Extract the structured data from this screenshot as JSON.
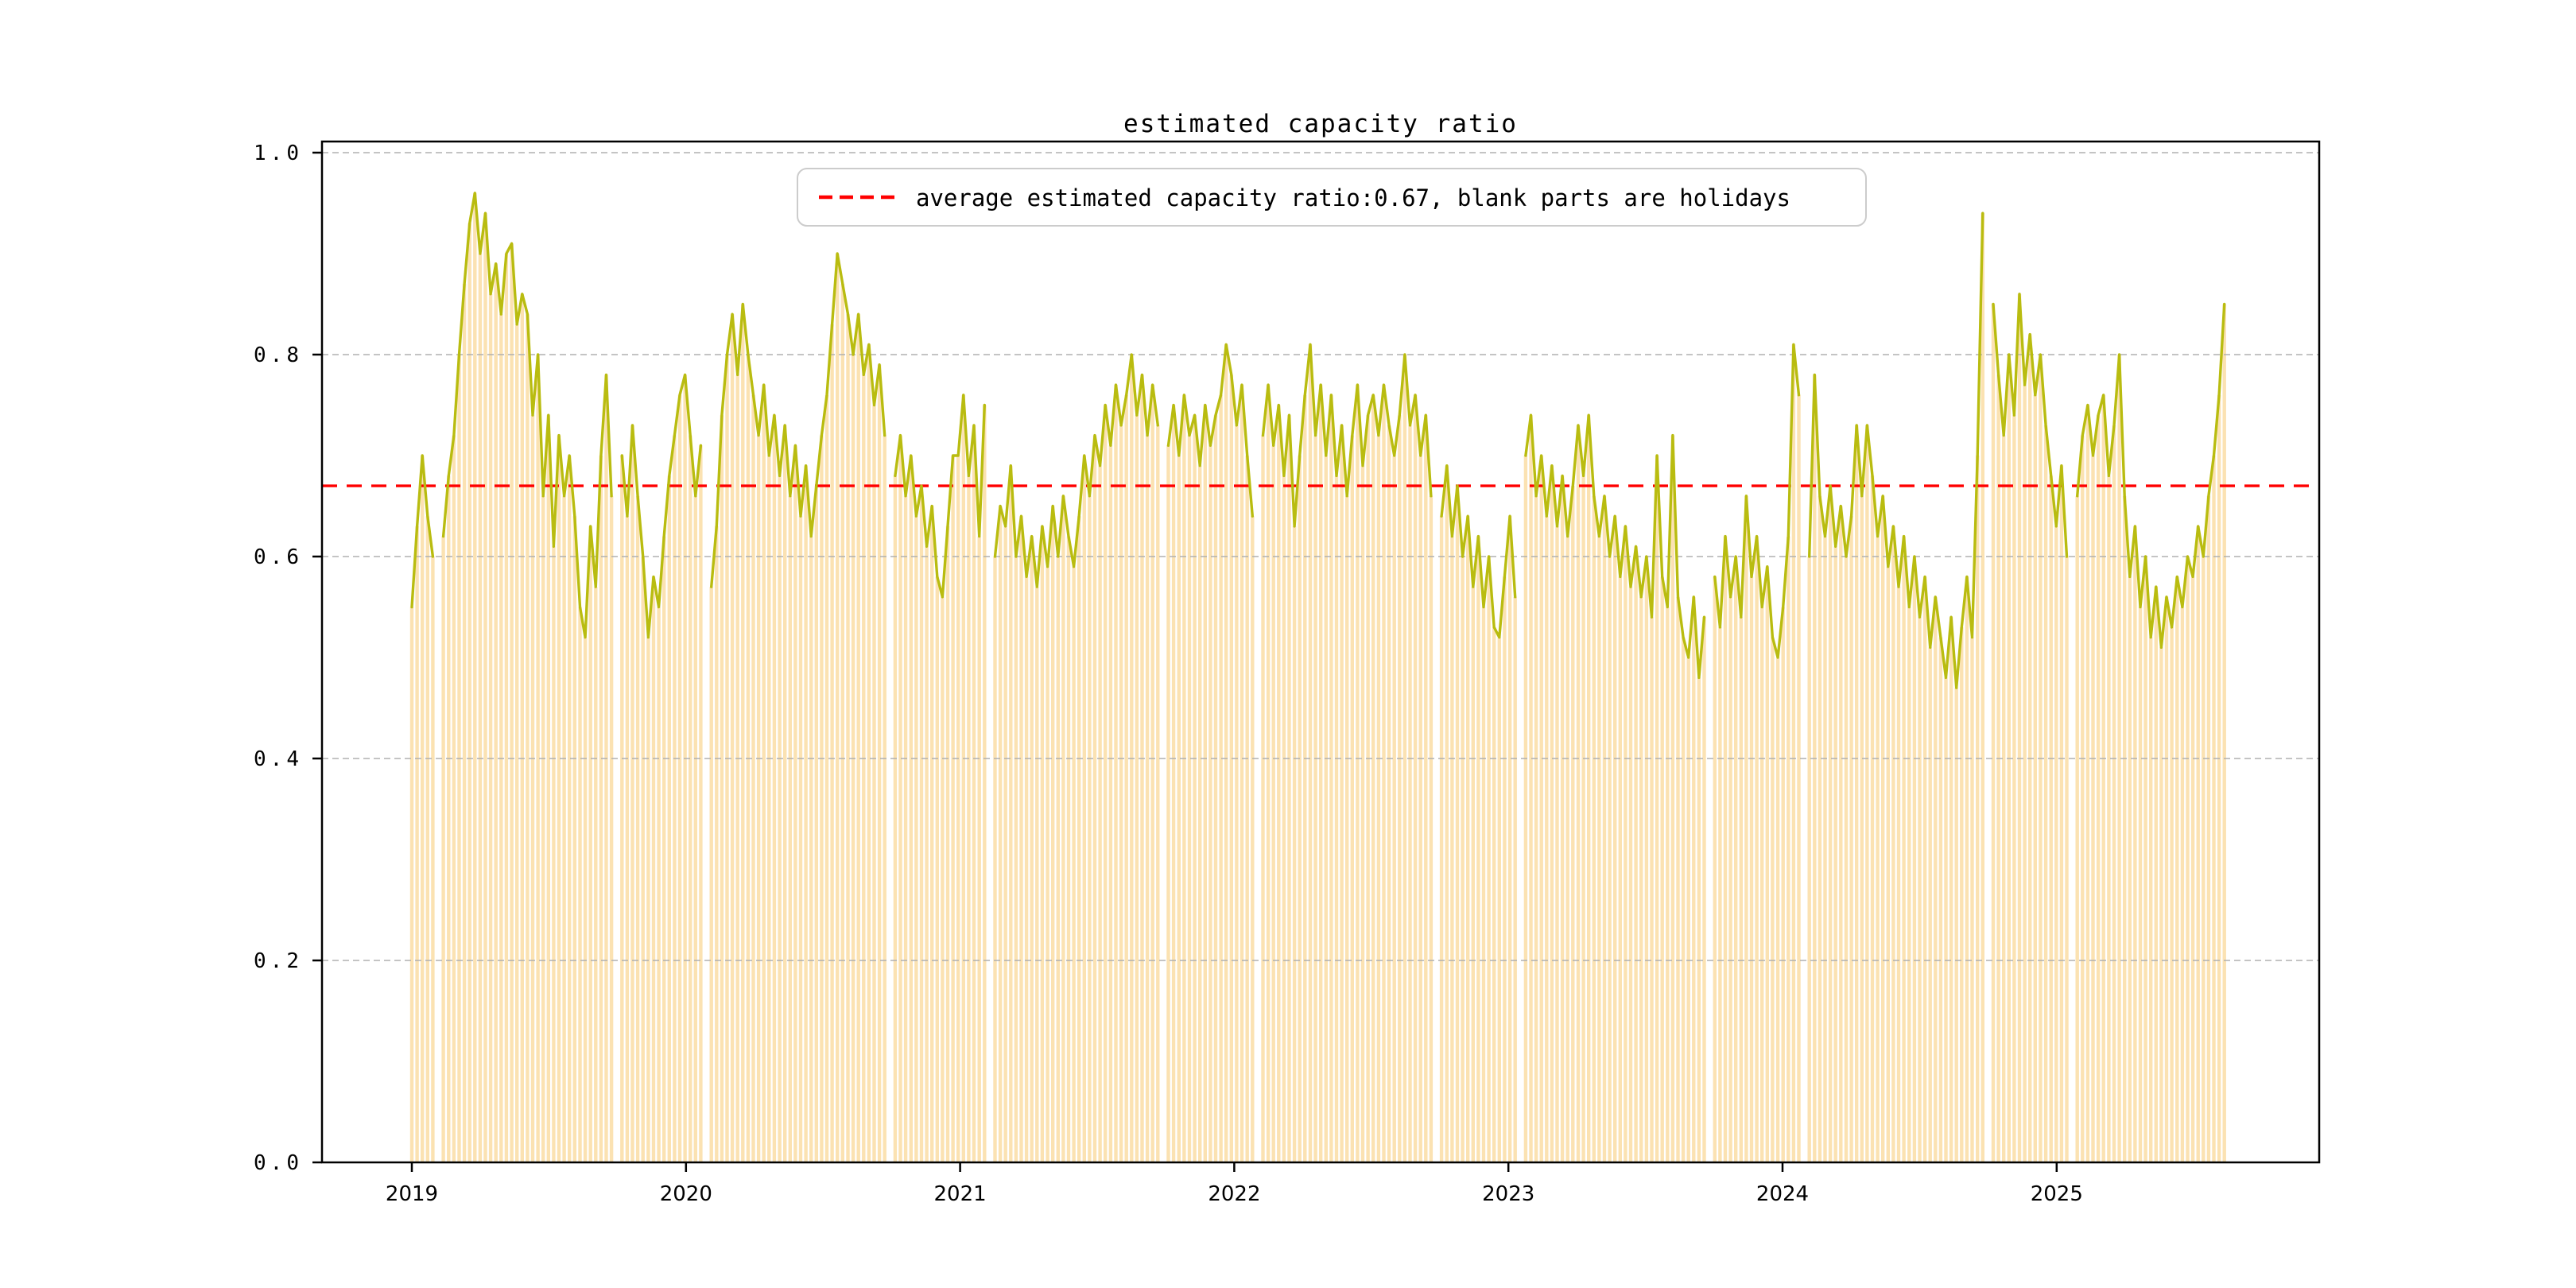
{
  "chart": {
    "title": "estimated capacity ratio",
    "legend": {
      "label": "average estimated capacity ratio:0.67, blank parts are holidays",
      "swatch": "red-dashed-line"
    },
    "colors": {
      "line": "#b9bc10",
      "bars": "#fbe2b2",
      "average": "#ff0000",
      "grid": "#b0b0b0",
      "frame": "#000000",
      "legend_border": "#cccccc"
    }
  },
  "chart_data": {
    "type": "line",
    "title": "estimated capacity ratio",
    "xlabel": "",
    "ylabel": "",
    "ylim": [
      0.0,
      1.0
    ],
    "y_ticks": [
      0.0,
      0.2,
      0.4,
      0.6,
      0.8,
      1.0
    ],
    "y_tick_labels": [
      "0.0",
      "0.2",
      "0.4",
      "0.6",
      "0.8",
      "1.0"
    ],
    "x_tick_labels": [
      "2019",
      "2020",
      "2021",
      "2022",
      "2023",
      "2024",
      "2025"
    ],
    "average_value": 0.67,
    "grid": "dashed-horizontal",
    "legend_position": "upper-center",
    "sampling": "weekly",
    "start_year": 2019,
    "weeks_per_year": 52.18,
    "holiday_gaps": "null values = blank holiday weeks",
    "values": [
      0.55,
      0.63,
      0.7,
      0.64,
      0.6,
      null,
      0.62,
      0.68,
      0.72,
      0.8,
      0.87,
      0.93,
      0.96,
      0.9,
      0.94,
      0.86,
      0.89,
      0.84,
      0.9,
      0.91,
      0.83,
      0.86,
      0.84,
      0.74,
      0.8,
      0.66,
      0.74,
      0.61,
      0.72,
      0.66,
      0.7,
      0.64,
      0.55,
      0.52,
      0.63,
      0.57,
      0.7,
      0.78,
      0.66,
      null,
      0.7,
      0.64,
      0.73,
      0.66,
      0.6,
      0.52,
      0.58,
      0.55,
      0.62,
      0.68,
      0.72,
      0.76,
      0.78,
      0.72,
      0.66,
      0.71,
      null,
      0.57,
      0.63,
      0.74,
      0.8,
      0.84,
      0.78,
      0.85,
      0.8,
      0.76,
      0.72,
      0.77,
      0.7,
      0.74,
      0.68,
      0.73,
      0.66,
      0.71,
      0.64,
      0.69,
      0.62,
      0.67,
      0.72,
      0.76,
      0.83,
      0.9,
      0.87,
      0.84,
      0.8,
      0.84,
      0.78,
      0.81,
      0.75,
      0.79,
      0.72,
      null,
      0.68,
      0.72,
      0.66,
      0.7,
      0.64,
      0.67,
      0.61,
      0.65,
      0.58,
      0.56,
      0.63,
      0.7,
      0.7,
      0.76,
      0.68,
      0.73,
      0.62,
      0.75,
      null,
      0.6,
      0.65,
      0.63,
      0.69,
      0.6,
      0.64,
      0.58,
      0.62,
      0.57,
      0.63,
      0.59,
      0.65,
      0.6,
      0.66,
      0.62,
      0.59,
      0.64,
      0.7,
      0.66,
      0.72,
      0.69,
      0.75,
      0.71,
      0.77,
      0.73,
      0.76,
      0.8,
      0.74,
      0.78,
      0.72,
      0.77,
      0.73,
      null,
      0.71,
      0.75,
      0.7,
      0.76,
      0.72,
      0.74,
      0.69,
      0.75,
      0.71,
      0.74,
      0.76,
      0.81,
      0.78,
      0.73,
      0.77,
      0.7,
      0.64,
      null,
      0.72,
      0.77,
      0.71,
      0.75,
      0.68,
      0.74,
      0.63,
      0.7,
      0.76,
      0.81,
      0.72,
      0.77,
      0.7,
      0.76,
      0.68,
      0.73,
      0.66,
      0.72,
      0.77,
      0.69,
      0.74,
      0.76,
      0.72,
      0.77,
      0.73,
      0.7,
      0.74,
      0.8,
      0.73,
      0.76,
      0.7,
      0.74,
      0.66,
      null,
      0.64,
      0.69,
      0.62,
      0.67,
      0.6,
      0.64,
      0.57,
      0.62,
      0.55,
      0.6,
      0.53,
      0.52,
      0.58,
      0.64,
      0.56,
      null,
      0.7,
      0.74,
      0.66,
      0.7,
      0.64,
      0.69,
      0.63,
      0.68,
      0.62,
      0.67,
      0.73,
      0.68,
      0.74,
      0.66,
      0.62,
      0.66,
      0.6,
      0.64,
      0.58,
      0.63,
      0.57,
      0.61,
      0.56,
      0.6,
      0.54,
      0.7,
      0.58,
      0.55,
      0.72,
      0.56,
      0.52,
      0.5,
      0.56,
      0.48,
      0.54,
      null,
      0.58,
      0.53,
      0.62,
      0.56,
      0.6,
      0.54,
      0.66,
      0.58,
      0.62,
      0.55,
      0.59,
      0.52,
      0.5,
      0.55,
      0.62,
      0.81,
      0.76,
      null,
      0.6,
      0.78,
      0.66,
      0.62,
      0.67,
      0.61,
      0.65,
      0.6,
      0.64,
      0.73,
      0.66,
      0.73,
      0.68,
      0.62,
      0.66,
      0.59,
      0.63,
      0.57,
      0.62,
      0.55,
      0.6,
      0.54,
      0.58,
      0.51,
      0.56,
      0.52,
      0.48,
      0.54,
      0.47,
      0.53,
      0.58,
      0.52,
      0.7,
      0.94,
      null,
      0.85,
      0.78,
      0.72,
      0.8,
      0.74,
      0.86,
      0.77,
      0.82,
      0.76,
      0.8,
      0.73,
      0.68,
      0.63,
      0.69,
      0.6,
      null,
      0.66,
      0.72,
      0.75,
      0.7,
      0.74,
      0.76,
      0.68,
      0.73,
      0.8,
      0.66,
      0.58,
      0.63,
      0.55,
      0.6,
      0.52,
      0.57,
      0.51,
      0.56,
      0.53,
      0.58,
      0.55,
      0.6,
      0.58,
      0.63,
      0.6,
      0.66,
      0.7,
      0.76,
      0.85
    ]
  }
}
